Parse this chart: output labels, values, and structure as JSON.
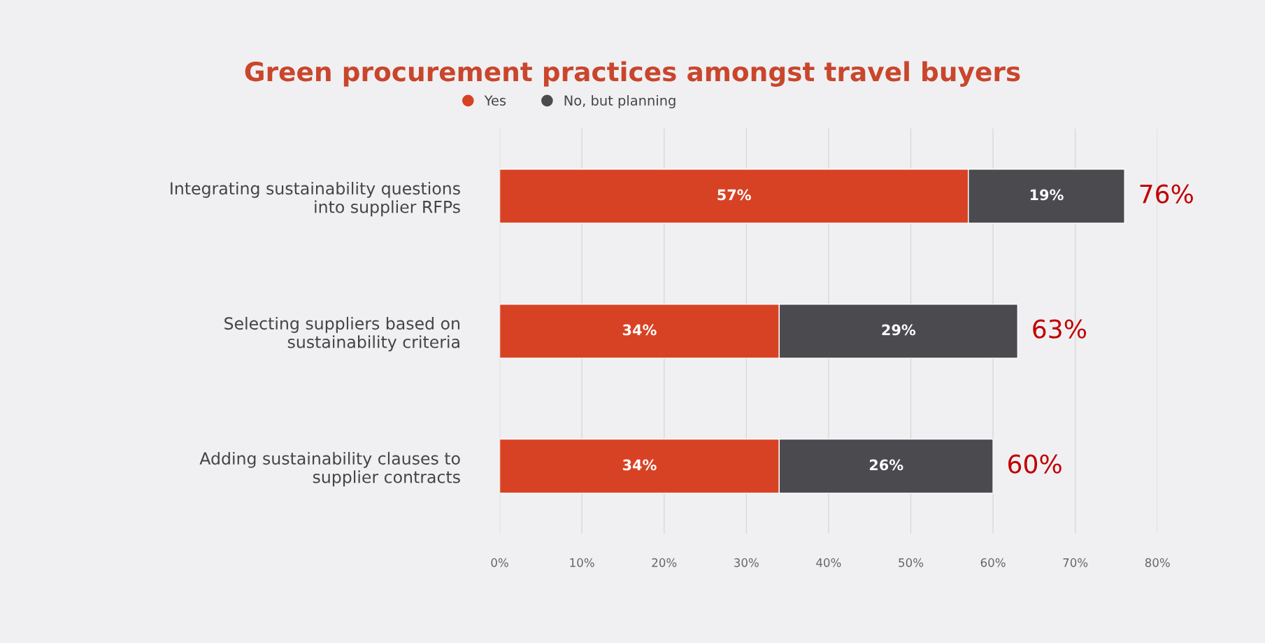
{
  "chart_data": {
    "type": "bar",
    "orientation": "horizontal",
    "stacked": true,
    "title": "Green procurement practices amongst travel buyers",
    "categories": [
      "Integrating sustainability questions\ninto supplier RFPs",
      "Selecting suppliers based on\nsustainability criteria",
      "Adding sustainability clauses to\nsupplier contracts"
    ],
    "series": [
      {
        "name": "Yes",
        "color": "#d84224",
        "values": [
          57,
          34,
          34
        ],
        "value_labels": [
          "57%",
          "34%",
          "34%"
        ]
      },
      {
        "name": "No, but planning",
        "color": "#4a4a4f",
        "values": [
          19,
          29,
          26
        ],
        "value_labels": [
          "19%",
          "29%",
          "26%"
        ]
      }
    ],
    "totals": [
      "76%",
      "63%",
      "60%"
    ],
    "xlim": [
      0,
      80
    ],
    "xticks": [
      {
        "value": 0,
        "label": "0%"
      },
      {
        "value": 10,
        "label": "10%"
      },
      {
        "value": 20,
        "label": "20%"
      },
      {
        "value": 30,
        "label": "30%"
      },
      {
        "value": 40,
        "label": "40%"
      },
      {
        "value": 50,
        "label": "50%"
      },
      {
        "value": 60,
        "label": "60%"
      },
      {
        "value": 70,
        "label": "70%"
      },
      {
        "value": 80,
        "label": "80%"
      }
    ],
    "grid": "x",
    "legend": "top",
    "marker": "circle"
  }
}
